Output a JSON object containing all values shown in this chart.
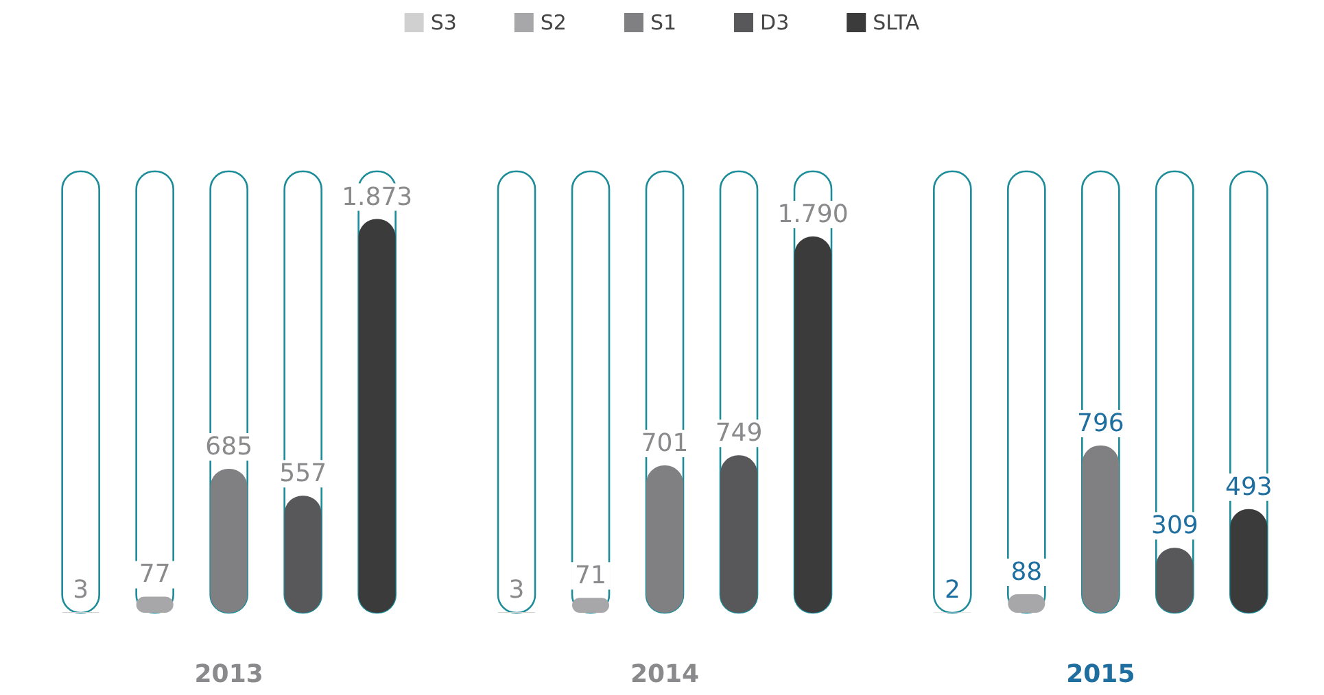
{
  "chart_data": {
    "type": "bar",
    "categories": [
      "2013",
      "2014",
      "2015"
    ],
    "series": [
      {
        "name": "S3",
        "color": "#d0d0d0",
        "values": [
          3,
          3,
          2
        ],
        "value_labels": [
          "3",
          "3",
          "2"
        ]
      },
      {
        "name": "S2",
        "color": "#a7a7a9",
        "values": [
          77,
          71,
          88
        ],
        "value_labels": [
          "77",
          "71",
          "88"
        ]
      },
      {
        "name": "S1",
        "color": "#808083",
        "values": [
          685,
          701,
          796
        ],
        "value_labels": [
          "685",
          "701",
          "796"
        ]
      },
      {
        "name": "D3",
        "color": "#58585a",
        "values": [
          557,
          749,
          309
        ],
        "value_labels": [
          "557",
          "749",
          "309"
        ]
      },
      {
        "name": "SLTA",
        "color": "#3b3b3b",
        "values": [
          1873,
          1790,
          493
        ],
        "value_labels": [
          "1.873",
          "1.790",
          "493"
        ]
      }
    ],
    "legend": "top",
    "grid": false
  }
}
